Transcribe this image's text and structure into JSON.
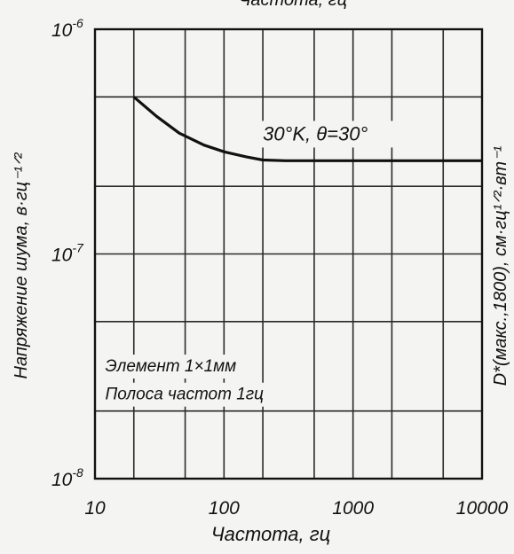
{
  "chart_data": {
    "type": "line",
    "top_label": "Частота, гц",
    "xlabel": "Частота, гц",
    "ylabel": "Напряжение шума, в·гц⁻¹ᐟ²",
    "ylabel_right": "D*(макс.,1800), см·гц¹ᐟ²·вт⁻¹",
    "x_scale": "log",
    "y_scale": "log",
    "xlim": [
      10,
      10000
    ],
    "ylim": [
      1e-08,
      1e-06
    ],
    "x_ticks": [
      10,
      100,
      1000,
      10000
    ],
    "x_tick_labels": [
      "10",
      "100",
      "1000",
      "10000"
    ],
    "y_ticks": [
      1e-08,
      1e-07,
      1e-06
    ],
    "y_tick_labels": [
      {
        "base": "10",
        "exp": "-8"
      },
      {
        "base": "10",
        "exp": "-7"
      },
      {
        "base": "10",
        "exp": "-6"
      }
    ],
    "grid": true,
    "series": [
      {
        "name": "30°K, θ=30°",
        "x": [
          20,
          30,
          45,
          70,
          100,
          150,
          200,
          300,
          500,
          1000,
          2000,
          5000,
          10000
        ],
        "y": [
          5e-07,
          4.1e-07,
          3.45e-07,
          3.05e-07,
          2.85e-07,
          2.7e-07,
          2.62e-07,
          2.6e-07,
          2.6e-07,
          2.6e-07,
          2.6e-07,
          2.6e-07,
          2.6e-07
        ]
      }
    ],
    "annotations": [
      {
        "text": "30°K, θ=30°",
        "x": 200,
        "y": 3.2e-07
      },
      {
        "text": "Элемент 1×1мм",
        "x": 12,
        "y": 3e-08
      },
      {
        "text": "Полоса частот 1гц",
        "x": 12,
        "y": 2.25e-08
      }
    ]
  }
}
